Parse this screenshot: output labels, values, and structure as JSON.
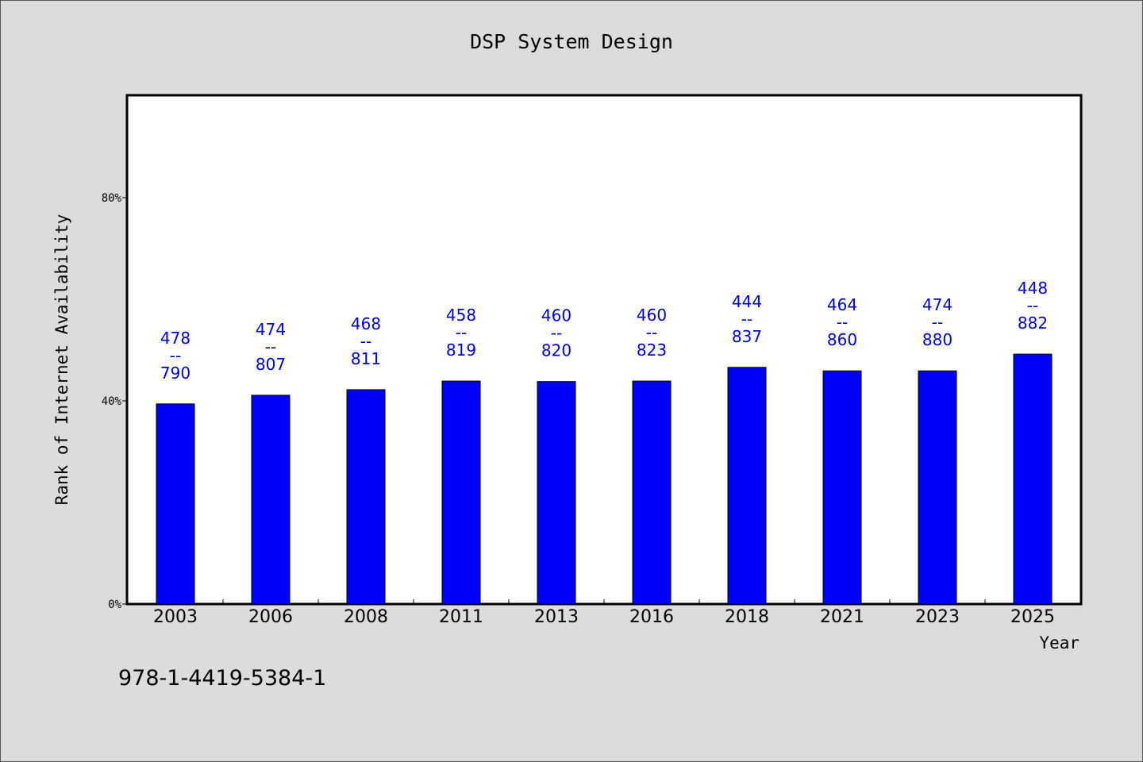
{
  "chart_data": {
    "type": "bar",
    "title": "DSP System Design",
    "xlabel": "Year",
    "ylabel": "Rank of Internet Availability",
    "ylim": [
      0,
      100
    ],
    "yticks": [
      {
        "value": 0,
        "label": "0%"
      },
      {
        "value": 40,
        "label": "40%"
      },
      {
        "value": 80,
        "label": "80%"
      }
    ],
    "categories": [
      "2003",
      "2006",
      "2008",
      "2011",
      "2013",
      "2016",
      "2018",
      "2021",
      "2023",
      "2025"
    ],
    "values": [
      39.4,
      41.1,
      42.2,
      43.9,
      43.8,
      43.9,
      46.6,
      45.9,
      45.9,
      49.2
    ],
    "data_labels": [
      {
        "top": "478",
        "sep": "--",
        "bottom": "790"
      },
      {
        "top": "474",
        "sep": "--",
        "bottom": "807"
      },
      {
        "top": "468",
        "sep": "--",
        "bottom": "811"
      },
      {
        "top": "458",
        "sep": "--",
        "bottom": "819"
      },
      {
        "top": "460",
        "sep": "--",
        "bottom": "820"
      },
      {
        "top": "460",
        "sep": "--",
        "bottom": "823"
      },
      {
        "top": "444",
        "sep": "--",
        "bottom": "837"
      },
      {
        "top": "464",
        "sep": "--",
        "bottom": "860"
      },
      {
        "top": "474",
        "sep": "--",
        "bottom": "880"
      },
      {
        "top": "448",
        "sep": "--",
        "bottom": "882"
      }
    ],
    "bar_color": "#0000ff",
    "label_color": "#0000cc",
    "grid": false,
    "legend": "none"
  },
  "footer": {
    "isbn": "978-1-4419-5384-1"
  },
  "colors": {
    "background": "#dcdcdc",
    "plot_background": "#ffffff"
  }
}
